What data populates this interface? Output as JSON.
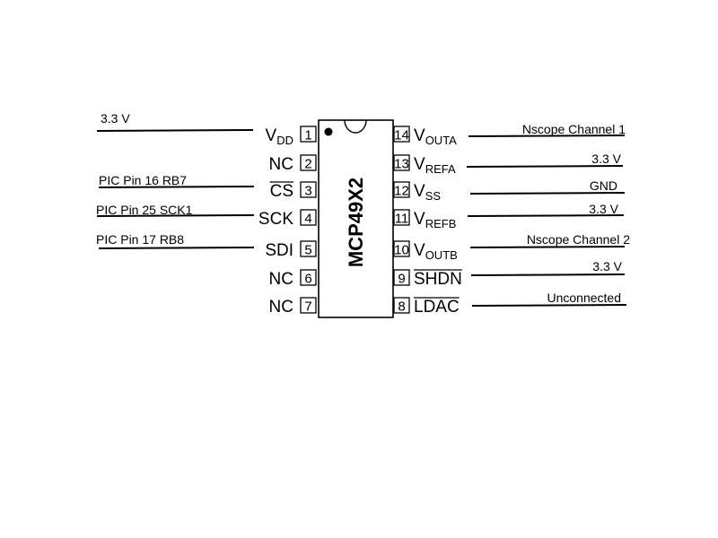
{
  "chip": {
    "name": "MCP49X2"
  },
  "left_pins": [
    {
      "num": "1",
      "name": "V",
      "sub": "DD",
      "overline": false,
      "connection": "3.3 V"
    },
    {
      "num": "2",
      "name": "NC",
      "sub": "",
      "overline": false,
      "connection": ""
    },
    {
      "num": "3",
      "name": "CS",
      "sub": "",
      "overline": true,
      "connection": "PIC Pin 16 RB7"
    },
    {
      "num": "4",
      "name": "SCK",
      "sub": "",
      "overline": false,
      "connection": "PIC Pin 25 SCK1"
    },
    {
      "num": "5",
      "name": "SDI",
      "sub": "",
      "overline": false,
      "connection": "PIC Pin 17 RB8"
    },
    {
      "num": "6",
      "name": "NC",
      "sub": "",
      "overline": false,
      "connection": ""
    },
    {
      "num": "7",
      "name": "NC",
      "sub": "",
      "overline": false,
      "connection": ""
    }
  ],
  "right_pins": [
    {
      "num": "14",
      "name": "V",
      "sub": "OUTA",
      "overline": false,
      "connection": "Nscope Channel 1"
    },
    {
      "num": "13",
      "name": "V",
      "sub": "REFA",
      "overline": false,
      "connection": "3.3 V"
    },
    {
      "num": "12",
      "name": "V",
      "sub": "SS",
      "overline": false,
      "connection": "GND"
    },
    {
      "num": "11",
      "name": "V",
      "sub": "REFB",
      "overline": false,
      "connection": "3.3 V"
    },
    {
      "num": "10",
      "name": "V",
      "sub": "OUTB",
      "overline": false,
      "connection": "Nscope Channel 2"
    },
    {
      "num": "9",
      "name": "SHDN",
      "sub": "",
      "overline": true,
      "connection": "3.3 V"
    },
    {
      "num": "8",
      "name": "LDAC",
      "sub": "",
      "overline": true,
      "connection": "Unconnected"
    }
  ]
}
